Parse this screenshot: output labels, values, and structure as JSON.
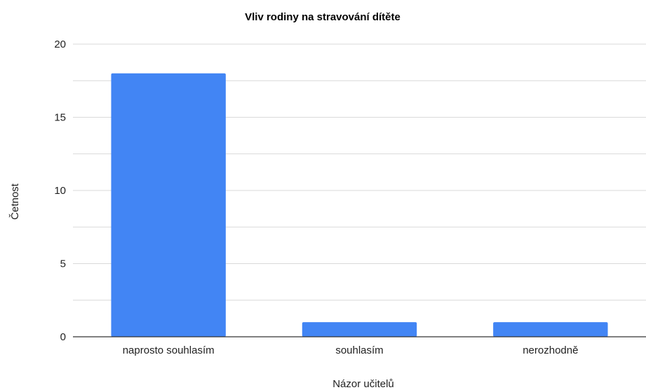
{
  "chart_data": {
    "type": "bar",
    "title": "Vliv rodiny na stravování dítěte",
    "xlabel": "Názor učitelů",
    "ylabel": "Četnost",
    "categories": [
      "naprosto souhlasím",
      "souhlasím",
      "nerozhodně"
    ],
    "values": [
      18,
      1,
      1
    ],
    "ylim": [
      0,
      20
    ],
    "yticks": [
      "0",
      "5",
      "10",
      "15",
      "20"
    ],
    "grid": true,
    "legend": "none",
    "bar_color": "#4285f4",
    "gridline_color": "#d9d9d9",
    "axis_color": "#333333"
  }
}
